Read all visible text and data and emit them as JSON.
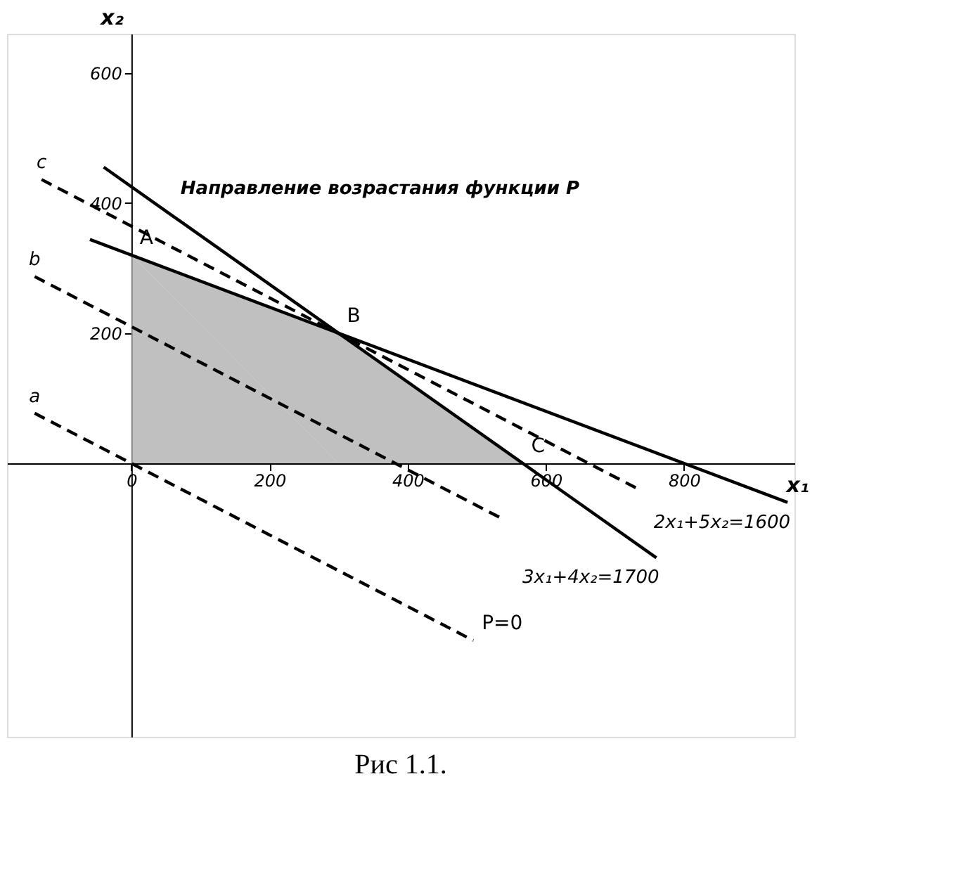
{
  "chart_data": {
    "type": "line",
    "xlabel": "x₁",
    "ylabel": "x₂",
    "xlim": [
      -180,
      960
    ],
    "ylim": [
      -420,
      660
    ],
    "xticks": [
      0,
      200,
      400,
      600,
      800
    ],
    "yticks": [
      200,
      400,
      600
    ],
    "grid": false,
    "marker": "none",
    "series": [
      {
        "type": "area",
        "color": "#b0b0b0",
        "x": [
          0,
          300,
          566.7
        ],
        "values": [
          320,
          200,
          0
        ]
      },
      {
        "name": "2x₁+5x₂=1600",
        "color": "#000000",
        "line_style": "solid",
        "x": [
          -60,
          950
        ],
        "values": [
          344,
          -60
        ]
      },
      {
        "name": "3x₁+4x₂=1700",
        "color": "#000000",
        "line_style": "solid",
        "x": [
          -40,
          760
        ],
        "values": [
          455,
          -145
        ]
      },
      {
        "name": "a",
        "color": "#000000",
        "line_style": "dashed",
        "x": [
          -140,
          495
        ],
        "values": [
          77,
          -272
        ]
      },
      {
        "name": "b",
        "color": "#000000",
        "line_style": "dashed",
        "x": [
          -140,
          535
        ],
        "values": [
          287,
          -84
        ]
      },
      {
        "name": "c",
        "color": "#000000",
        "line_style": "dashed",
        "x": [
          -130,
          733
        ],
        "values": [
          436,
          -39
        ]
      }
    ],
    "annotations": [
      "Направление возрастания функции P",
      {
        "text": "A",
        "x": 0,
        "y": 320
      },
      {
        "text": "B",
        "x": 300,
        "y": 200
      },
      {
        "text": "C",
        "x": 566.7,
        "y": 0
      },
      {
        "text": "P=0",
        "x": 495,
        "y": -272
      },
      "Рис 1.1."
    ]
  }
}
